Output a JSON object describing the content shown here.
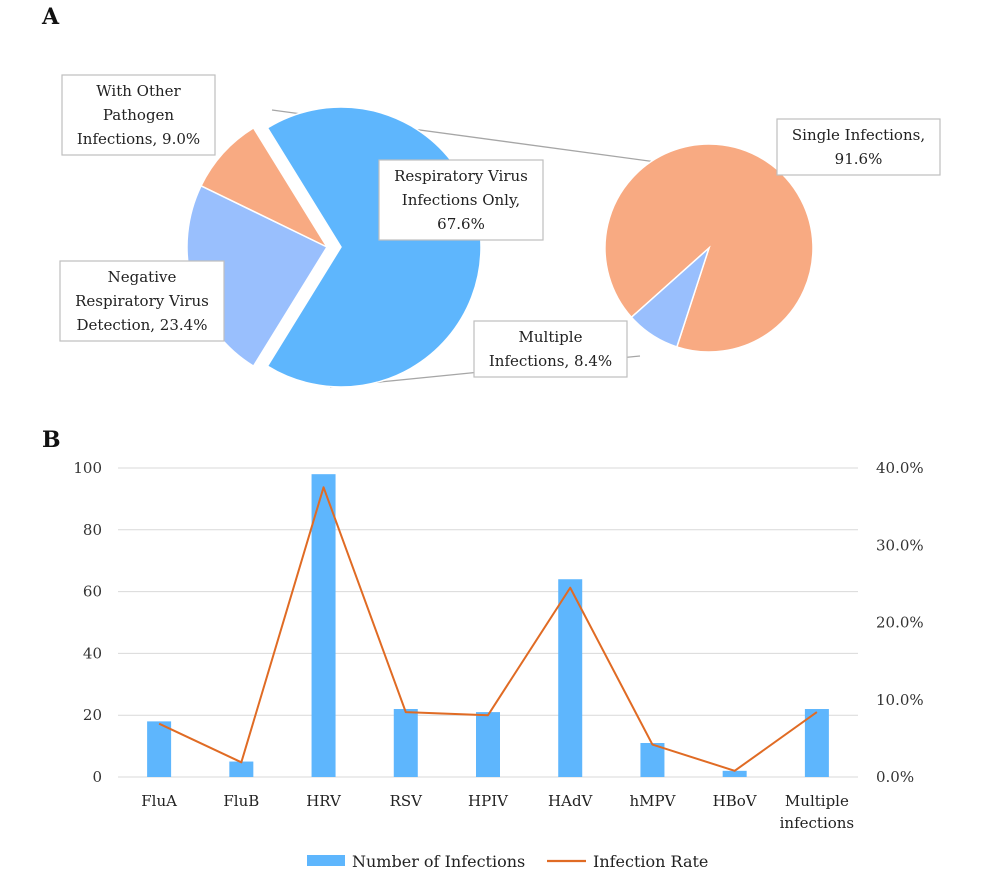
{
  "panels": {
    "a": "A",
    "b": "B"
  },
  "colors": {
    "blue": "#5eb6fd",
    "light_blue": "#99bffd",
    "salmon": "#f8aa82",
    "orange_line": "#e06b24",
    "grid": "#d9d9d9",
    "connector": "#a6a6a6"
  },
  "chart_data": [
    {
      "type": "pie",
      "title": "",
      "slices": [
        {
          "label": [
            "Respiratory Virus",
            "Infections Only,",
            "67.6%"
          ],
          "value": 67.6,
          "color": "#5eb6fd",
          "exploded": true
        },
        {
          "label": [
            "Negative",
            "Respiratory Virus",
            "Detection, 23.4%"
          ],
          "value": 23.4,
          "color": "#99bffd"
        },
        {
          "label": [
            "With Other",
            "Pathogen",
            "Infections, 9.0%"
          ],
          "value": 9.0,
          "color": "#f8aa82"
        }
      ]
    },
    {
      "type": "pie",
      "title": "",
      "slices": [
        {
          "label": [
            "Single Infections,",
            "91.6%"
          ],
          "value": 91.6,
          "color": "#f8aa82"
        },
        {
          "label": [
            "Multiple",
            "Infections, 8.4%"
          ],
          "value": 8.4,
          "color": "#99bffd"
        }
      ]
    },
    {
      "type": "bar",
      "title": "",
      "categories": [
        "FluA",
        "FluB",
        "HRV",
        "RSV",
        "HPIV",
        "HAdV",
        "hMPV",
        "HBoV",
        [
          "Multiple",
          "infections"
        ]
      ],
      "series": [
        {
          "name": "Number of Infections",
          "type": "bar",
          "axis": "left",
          "color": "#5eb6fd",
          "values": [
            18,
            5,
            98,
            22,
            21,
            64,
            11,
            2,
            22
          ]
        },
        {
          "name": "Infection Rate",
          "type": "line",
          "axis": "right",
          "color": "#e06b24",
          "values": [
            6.9,
            1.9,
            37.5,
            8.4,
            8.0,
            24.5,
            4.2,
            0.8,
            8.4
          ]
        }
      ],
      "ylim_left": [
        0,
        100
      ],
      "yticks_left": [
        "0",
        "20",
        "40",
        "60",
        "80",
        "100"
      ],
      "ylim_right": [
        0,
        40
      ],
      "yticks_right": [
        "0.0%",
        "10.0%",
        "20.0%",
        "30.0%",
        "40.0%"
      ],
      "grid": true,
      "legend": "bottom"
    }
  ]
}
